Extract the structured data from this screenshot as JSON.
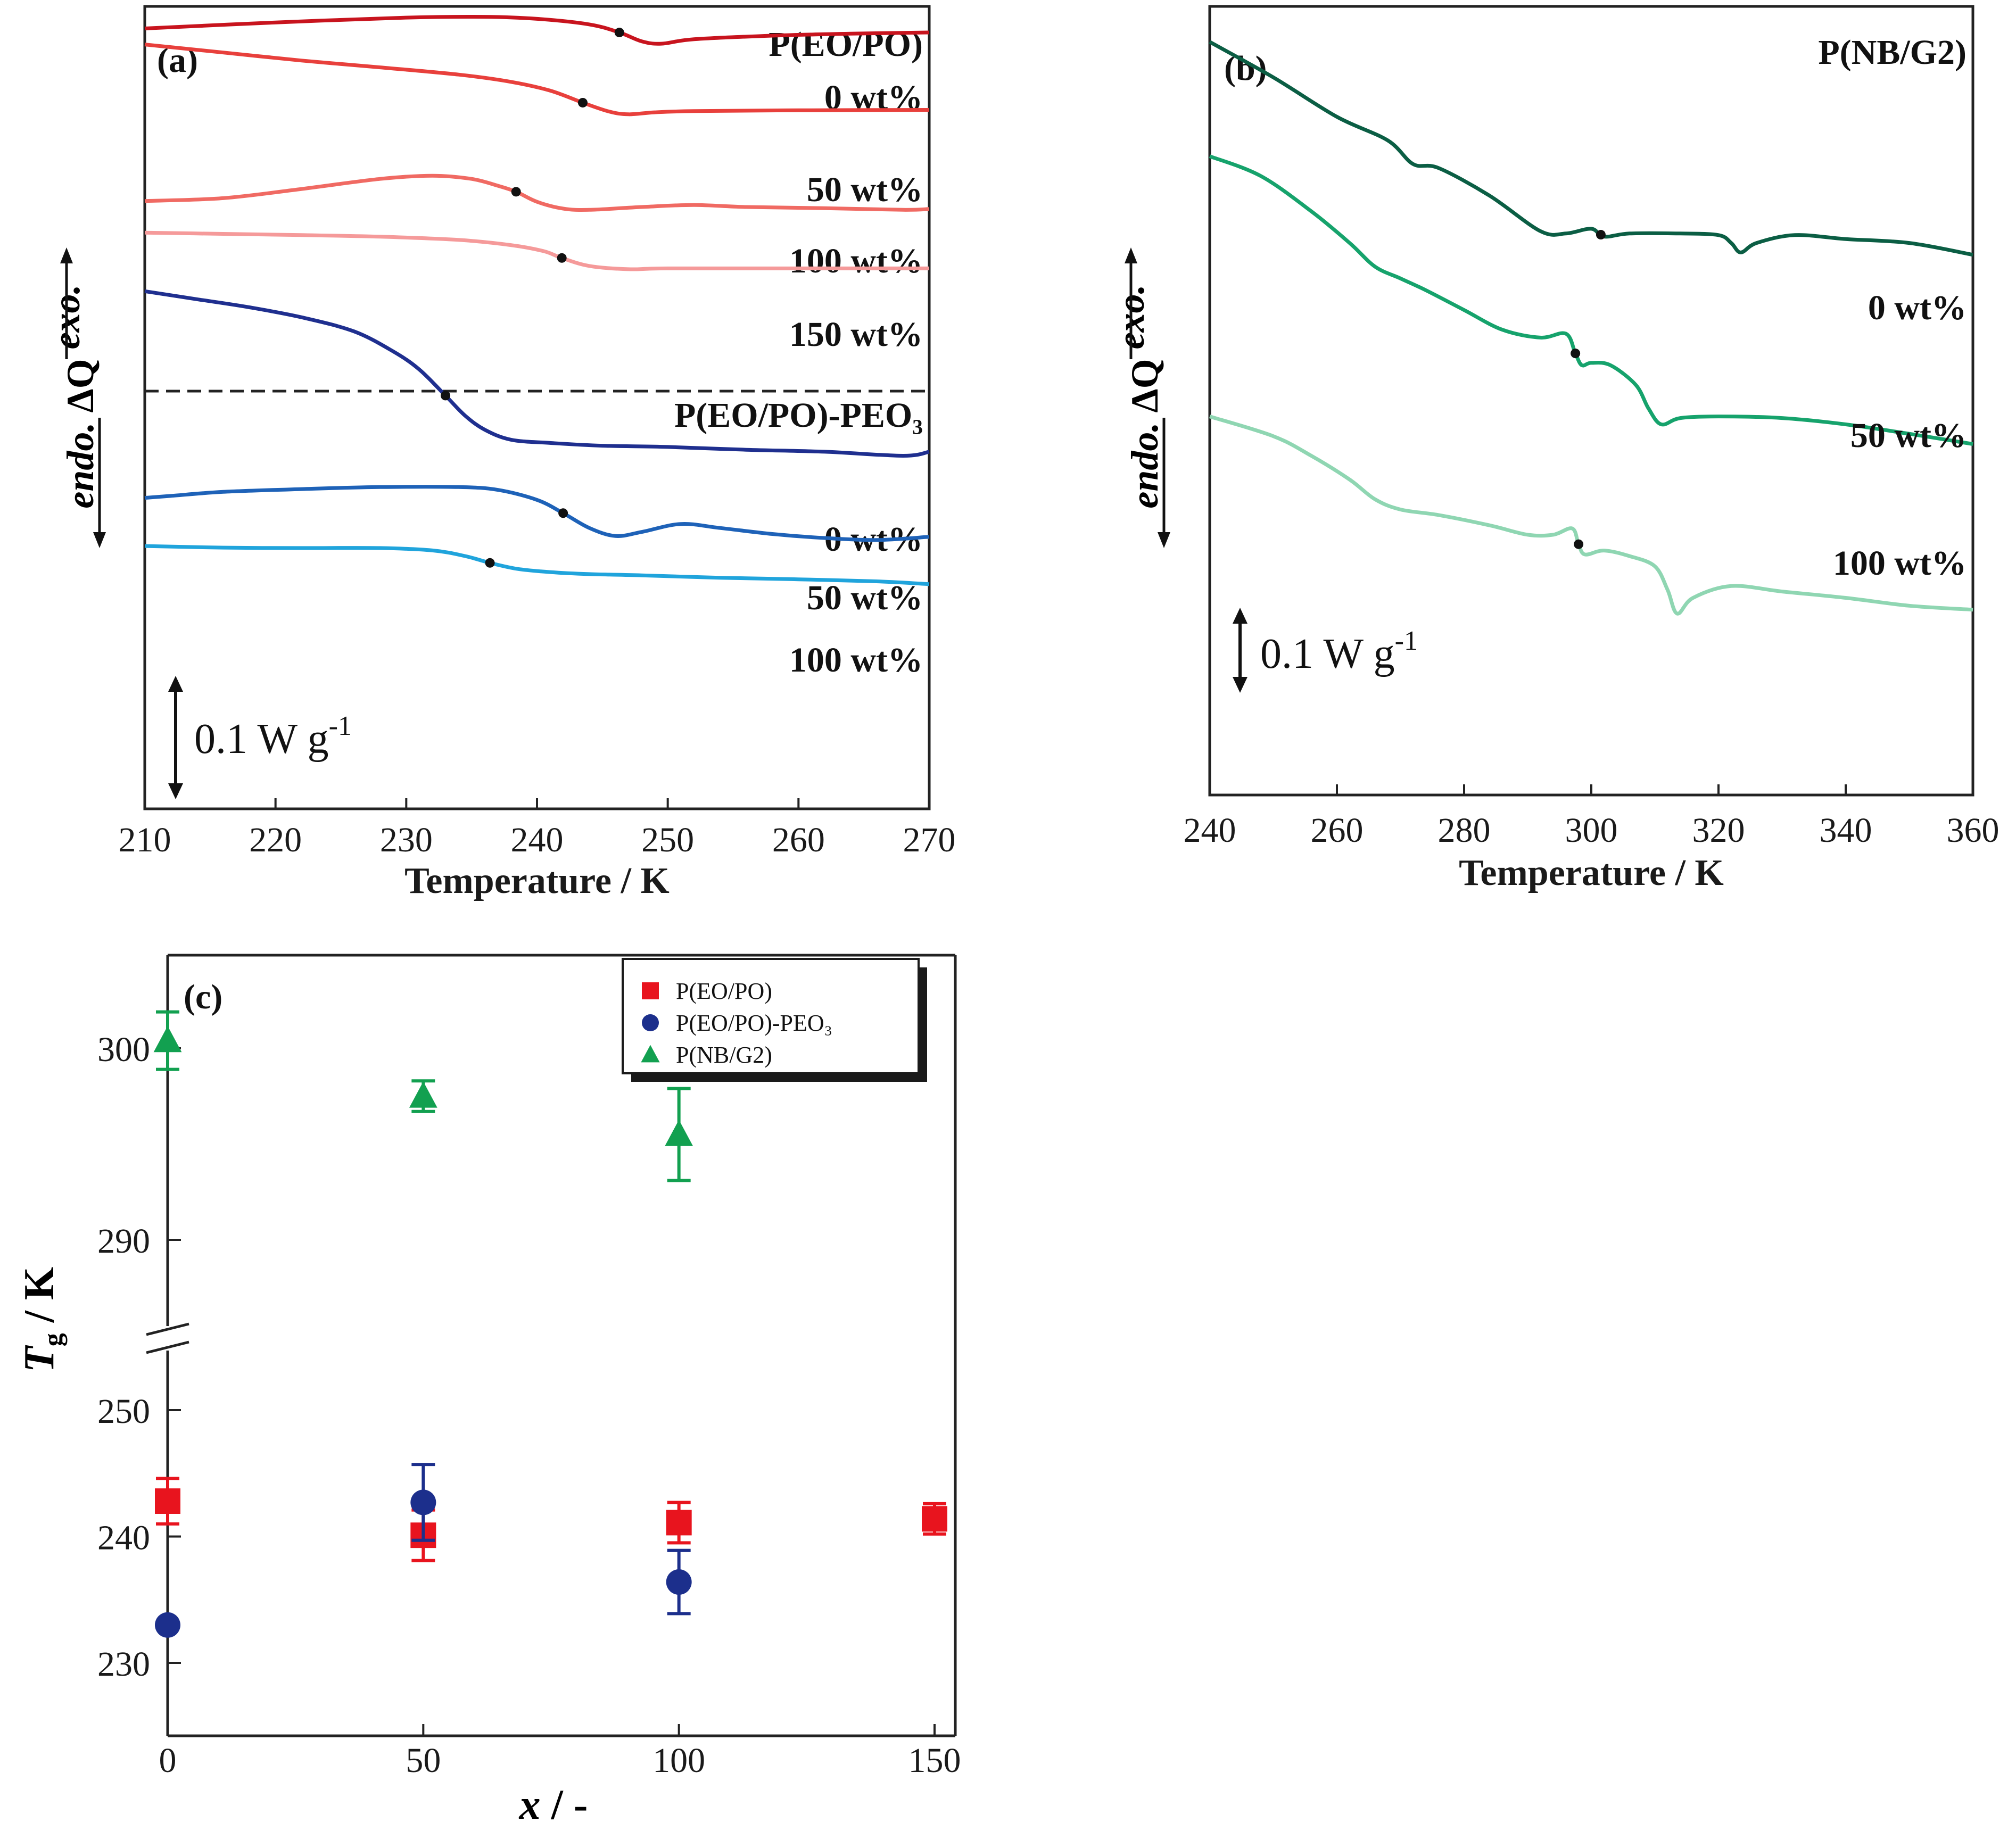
{
  "chart_data": [
    {
      "panel": "(a)",
      "type": "line",
      "xlabel": "Temperature / K",
      "xlim": [
        210,
        270
      ],
      "xticks": [
        210,
        220,
        230,
        240,
        250,
        260,
        270
      ],
      "ylabel_endo": "endo.",
      "ylabel_dq": "ΔQ",
      "ylabel_exo": "exo.",
      "scale_bar": "0.1 W g",
      "scale_bar_exp": "-1",
      "groups": [
        {
          "name": "P(EO/PO)",
          "series": [
            {
              "name": "0 wt%",
              "color": "#c8141e",
              "tg": 246.3,
              "x": [
                210,
                220,
                230,
                236,
                240,
                244,
                246.3,
                248,
                249.5,
                252,
                258,
                264,
                270
              ],
              "y": [
                0.945,
                0.96,
                0.972,
                0.974,
                0.969,
                0.955,
                0.935,
                0.913,
                0.907,
                0.918,
                0.927,
                0.932,
                0.935
              ]
            },
            {
              "name": "50 wt%",
              "color": "#e8403c",
              "tg": 243.5,
              "x": [
                210,
                216,
                222,
                228,
                234,
                238,
                241,
                243.5,
                245.5,
                247,
                249,
                252,
                260,
                270
              ],
              "y": [
                0.905,
                0.885,
                0.865,
                0.848,
                0.83,
                0.812,
                0.79,
                0.76,
                0.738,
                0.731,
                0.736,
                0.739,
                0.741,
                0.742
              ]
            },
            {
              "name": "100 wt%",
              "color": "#f06a63",
              "tg": 238.4,
              "x": [
                210,
                216,
                222,
                228,
                232,
                235,
                237,
                238.4,
                240,
                242,
                244,
                248,
                252,
                256,
                262,
                268,
                270
              ],
              "y": [
                0.515,
                0.522,
                0.545,
                0.57,
                0.578,
                0.57,
                0.553,
                0.538,
                0.513,
                0.496,
                0.493,
                0.5,
                0.505,
                0.5,
                0.497,
                0.493,
                0.495
              ]
            },
            {
              "name": "150 wt%",
              "color": "#f59a9a",
              "tg": 241.9,
              "x": [
                210,
                216,
                222,
                228,
                234,
                238,
                240.5,
                241.9,
                244,
                247,
                250,
                260,
                270
              ],
              "y": [
                0.436,
                0.433,
                0.43,
                0.426,
                0.418,
                0.405,
                0.39,
                0.373,
                0.353,
                0.345,
                0.347,
                0.347,
                0.347
              ]
            }
          ]
        },
        {
          "name": "P(EO/PO)-PEO₃",
          "series": [
            {
              "name": "0 wt%",
              "color": "#1f2f8f",
              "tg": 233.0,
              "x": [
                210,
                214,
                218,
                222,
                226,
                229,
                231,
                233,
                234.5,
                236,
                238,
                241,
                245,
                250,
                256,
                262,
                268,
                270
              ],
              "y": [
                0.29,
                0.27,
                0.25,
                0.225,
                0.19,
                0.14,
                0.095,
                0.03,
                -0.02,
                -0.055,
                -0.08,
                -0.088,
                -0.095,
                -0.098,
                -0.105,
                -0.11,
                -0.12,
                -0.11
              ]
            },
            {
              "name": "50 wt%",
              "color": "#1e62b8",
              "tg": 242.0,
              "x": [
                210,
                212,
                216,
                222,
                228,
                234,
                237,
                240,
                242,
                244,
                246,
                248,
                251,
                254,
                258,
                262,
                266,
                270
              ],
              "y": [
                -0.225,
                -0.22,
                -0.21,
                -0.203,
                -0.198,
                -0.198,
                -0.205,
                -0.23,
                -0.263,
                -0.3,
                -0.32,
                -0.31,
                -0.29,
                -0.3,
                -0.315,
                -0.325,
                -0.33,
                -0.322
              ]
            },
            {
              "name": "100 wt%",
              "color": "#20a4dc",
              "tg": 236.4,
              "x": [
                210,
                216,
                222,
                228,
                232,
                234.5,
                236.4,
                238.5,
                241,
                244,
                248,
                254,
                260,
                266,
                270
              ],
              "y": [
                -0.345,
                -0.349,
                -0.35,
                -0.35,
                -0.356,
                -0.37,
                -0.387,
                -0.402,
                -0.41,
                -0.415,
                -0.418,
                -0.424,
                -0.428,
                -0.433,
                -0.44
              ]
            }
          ]
        }
      ]
    },
    {
      "panel": "(b)",
      "type": "line",
      "title": "P(NB/G2)",
      "xlabel": "Temperature / K",
      "xlim": [
        240,
        360
      ],
      "xticks": [
        240,
        260,
        280,
        300,
        320,
        340,
        360
      ],
      "ylabel_endo": "endo.",
      "ylabel_dq": "ΔQ",
      "ylabel_exo": "exo.",
      "scale_bar": "0.1 W g",
      "scale_bar_exp": "-1",
      "series": [
        {
          "name": "0 wt%",
          "color": "#0b5e44",
          "tg": 301.5,
          "x": [
            240,
            250,
            260,
            268,
            272,
            276,
            284,
            292,
            296,
            300,
            302,
            306,
            314,
            320,
            322,
            323.5,
            326,
            332,
            340,
            350,
            360
          ],
          "y": [
            0.955,
            0.91,
            0.86,
            0.83,
            0.8,
            0.795,
            0.76,
            0.715,
            0.712,
            0.718,
            0.708,
            0.712,
            0.712,
            0.71,
            0.7,
            0.688,
            0.7,
            0.71,
            0.705,
            0.7,
            0.685
          ]
        },
        {
          "name": "50 wt%",
          "color": "#16a36c",
          "tg": 297.5,
          "x": [
            240,
            248,
            256,
            262,
            266,
            270,
            274,
            280,
            286,
            292,
            296,
            297.5,
            298.5,
            300,
            303,
            307,
            309,
            311,
            314,
            320,
            330,
            340,
            350,
            360
          ],
          "y": [
            0.81,
            0.785,
            0.74,
            0.7,
            0.67,
            0.655,
            0.64,
            0.615,
            0.59,
            0.58,
            0.585,
            0.56,
            0.545,
            0.548,
            0.545,
            0.52,
            0.49,
            0.47,
            0.478,
            0.48,
            0.478,
            0.47,
            0.458,
            0.445
          ]
        },
        {
          "name": "100 wt%",
          "color": "#8fd6b2",
          "tg": 298.0,
          "x": [
            240,
            250,
            256,
            262,
            266,
            270,
            276,
            284,
            290,
            294,
            297,
            298,
            299,
            302,
            306,
            310,
            312,
            313.5,
            316,
            322,
            330,
            340,
            350,
            360
          ],
          "y": [
            0.48,
            0.455,
            0.43,
            0.4,
            0.375,
            0.362,
            0.355,
            0.342,
            0.33,
            0.33,
            0.338,
            0.318,
            0.305,
            0.31,
            0.303,
            0.29,
            0.26,
            0.23,
            0.25,
            0.265,
            0.258,
            0.25,
            0.24,
            0.235
          ]
        }
      ]
    },
    {
      "panel": "(c)",
      "type": "scatter",
      "xlabel_main": "x",
      "xlabel_rest": " / -",
      "ylabel_main": "T",
      "ylabel_sub": "g",
      "ylabel_rest": " / K",
      "xlim": [
        0,
        150
      ],
      "xticks": [
        0,
        50,
        100,
        150
      ],
      "ylim_lower": [
        225,
        254
      ],
      "ylim_upper": [
        287,
        305
      ],
      "yticks": [
        230,
        240,
        250,
        290,
        300
      ],
      "axis_break": true,
      "series": [
        {
          "name": "P(EO/PO)",
          "marker": "square",
          "color": "#e8141e",
          "x": [
            0,
            50,
            100,
            150
          ],
          "y": [
            242.8,
            240.1,
            241.1,
            241.4
          ],
          "err": [
            1.8,
            2.0,
            1.6,
            1.2
          ]
        },
        {
          "name": "P(EO/PO)-PEO₃",
          "marker": "circle",
          "color": "#1c2f8c",
          "x": [
            0,
            50,
            100
          ],
          "y": [
            233.0,
            242.7,
            236.4
          ],
          "err": [
            0,
            3.0,
            2.5
          ]
        },
        {
          "name": "P(NB/G2)",
          "marker": "triangle",
          "color": "#12a050",
          "x": [
            0,
            50,
            100
          ],
          "y": [
            300.4,
            297.5,
            295.5
          ],
          "err": [
            1.5,
            0.8,
            2.4
          ]
        }
      ]
    }
  ]
}
